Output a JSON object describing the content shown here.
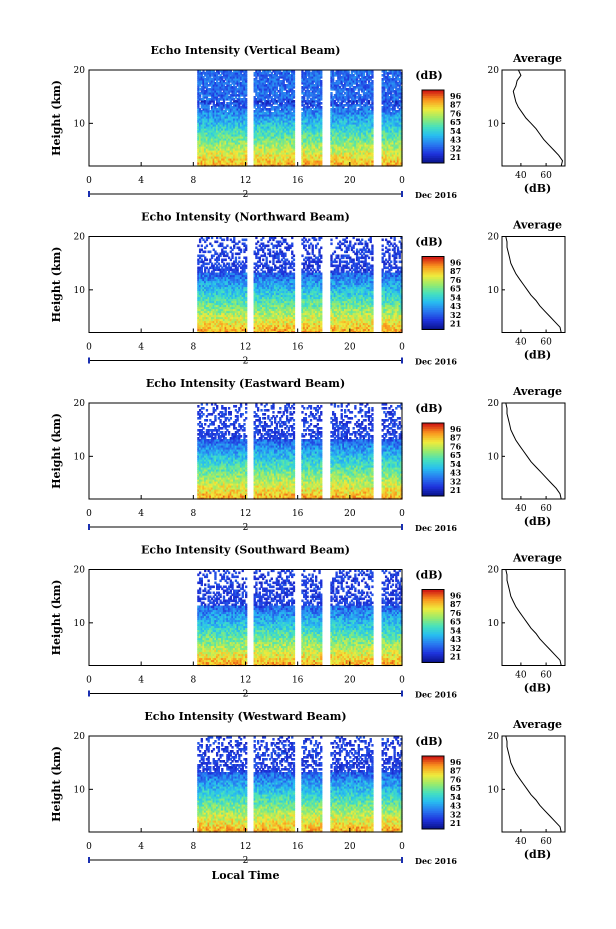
{
  "chart_data": {
    "type": "heatmap",
    "xlabel": "Local Time",
    "date_label": "Dec 2016",
    "day_label": "2",
    "ylabel": "Height (km)",
    "colorbar_unit": "(dB)",
    "colorbar_ticks": [
      "96",
      "87",
      "76",
      "65",
      "54",
      "43",
      "32",
      "21"
    ],
    "x_ticks": [
      "0",
      "4",
      "8",
      "12",
      "16",
      "20",
      "0"
    ],
    "x_range": [
      0,
      24
    ],
    "y_range": [
      2,
      20
    ],
    "y_ticks": [
      "20",
      "10"
    ],
    "data_gaps_hours": [
      [
        12.1,
        12.5
      ],
      [
        15.8,
        16.2
      ],
      [
        17.9,
        18.4
      ],
      [
        21.9,
        22.4
      ]
    ],
    "data_start_hour": 8.3,
    "avg_title": "Average",
    "avg_xlabel": "(dB)",
    "panels": [
      {
        "title": "Echo Intensity (Vertical Beam)",
        "colorbar_ticks": [
          "96",
          "87",
          "76",
          "65",
          "54",
          "43",
          "32",
          "21"
        ],
        "avg_x_ticks": [
          "40",
          "60"
        ],
        "avg_x_range": [
          25,
          75
        ],
        "avg_profile": [
          [
            72,
            2
          ],
          [
            73,
            3
          ],
          [
            70,
            4
          ],
          [
            66,
            5
          ],
          [
            62,
            6
          ],
          [
            58,
            7
          ],
          [
            55,
            8
          ],
          [
            52,
            9
          ],
          [
            48,
            10
          ],
          [
            44,
            11
          ],
          [
            41,
            12
          ],
          [
            38,
            13
          ],
          [
            36,
            14
          ],
          [
            35,
            15
          ],
          [
            34,
            16
          ],
          [
            36,
            17
          ],
          [
            37,
            18
          ],
          [
            40,
            19
          ],
          [
            38,
            20
          ]
        ]
      },
      {
        "title": "Echo Intensity (Northward Beam)",
        "colorbar_ticks": [
          "96",
          "87",
          "76",
          "65",
          "54",
          "43",
          "32",
          "21"
        ],
        "avg_x_ticks": [
          "40",
          "60"
        ],
        "avg_x_range": [
          25,
          75
        ],
        "avg_profile": [
          [
            72,
            2
          ],
          [
            71,
            3
          ],
          [
            67,
            4
          ],
          [
            63,
            5
          ],
          [
            59,
            6
          ],
          [
            55,
            7
          ],
          [
            52,
            8
          ],
          [
            48,
            9
          ],
          [
            45,
            10
          ],
          [
            42,
            11
          ],
          [
            39,
            12
          ],
          [
            36,
            13
          ],
          [
            34,
            14
          ],
          [
            32,
            15
          ],
          [
            31,
            16
          ],
          [
            30,
            17
          ],
          [
            29,
            18
          ],
          [
            29,
            19
          ],
          [
            28,
            20
          ]
        ]
      },
      {
        "title": "Echo Intensity (Eastward Beam)",
        "colorbar_ticks": [
          "96",
          "87",
          "76",
          "65",
          "54",
          "43",
          "32",
          "21"
        ],
        "avg_x_ticks": [
          "40",
          "60"
        ],
        "avg_x_range": [
          25,
          75
        ],
        "avg_profile": [
          [
            72,
            2
          ],
          [
            71,
            3
          ],
          [
            68,
            4
          ],
          [
            64,
            5
          ],
          [
            60,
            6
          ],
          [
            56,
            7
          ],
          [
            52,
            8
          ],
          [
            48,
            9
          ],
          [
            45,
            10
          ],
          [
            42,
            11
          ],
          [
            39,
            12
          ],
          [
            36,
            13
          ],
          [
            34,
            14
          ],
          [
            32,
            15
          ],
          [
            31,
            16
          ],
          [
            30,
            17
          ],
          [
            29,
            18
          ],
          [
            29,
            19
          ],
          [
            28,
            20
          ]
        ]
      },
      {
        "title": "Echo Intensity (Southward Beam)",
        "colorbar_ticks": [
          "96",
          "87",
          "76",
          "65",
          "54",
          "43",
          "32",
          "21"
        ],
        "avg_x_ticks": [
          "40",
          "60"
        ],
        "avg_x_range": [
          25,
          75
        ],
        "avg_profile": [
          [
            72,
            2
          ],
          [
            71,
            3
          ],
          [
            67,
            4
          ],
          [
            63,
            5
          ],
          [
            59,
            6
          ],
          [
            55,
            7
          ],
          [
            52,
            8
          ],
          [
            48,
            9
          ],
          [
            45,
            10
          ],
          [
            42,
            11
          ],
          [
            39,
            12
          ],
          [
            36,
            13
          ],
          [
            34,
            14
          ],
          [
            32,
            15
          ],
          [
            31,
            16
          ],
          [
            30,
            17
          ],
          [
            29,
            18
          ],
          [
            29,
            19
          ],
          [
            28,
            20
          ]
        ]
      },
      {
        "title": "Echo Intensity (Westward Beam)",
        "colorbar_ticks": [
          "96",
          "87",
          "76",
          "65",
          "54",
          "43",
          "32",
          "21"
        ],
        "avg_x_ticks": [
          "40",
          "60"
        ],
        "avg_x_range": [
          25,
          75
        ],
        "avg_profile": [
          [
            72,
            2
          ],
          [
            71,
            3
          ],
          [
            67,
            4
          ],
          [
            63,
            5
          ],
          [
            59,
            6
          ],
          [
            55,
            7
          ],
          [
            52,
            8
          ],
          [
            48,
            9
          ],
          [
            45,
            10
          ],
          [
            42,
            11
          ],
          [
            39,
            12
          ],
          [
            36,
            13
          ],
          [
            34,
            14
          ],
          [
            32,
            15
          ],
          [
            31,
            16
          ],
          [
            30,
            17
          ],
          [
            29,
            18
          ],
          [
            29,
            19
          ],
          [
            28,
            20
          ]
        ]
      }
    ]
  }
}
